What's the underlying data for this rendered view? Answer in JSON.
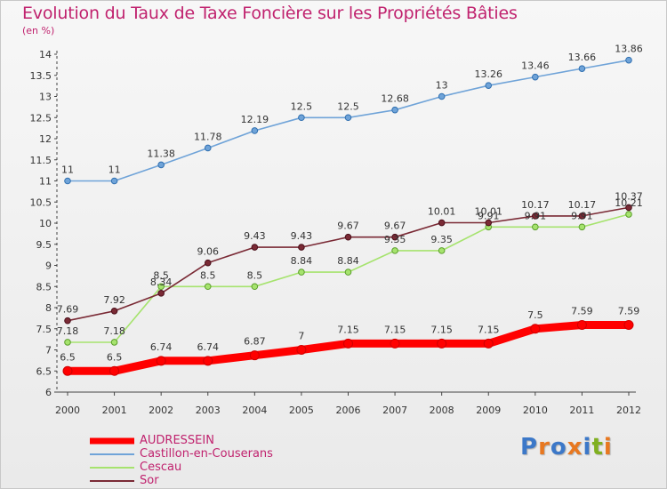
{
  "header": {
    "title": "Evolution du Taux de Taxe Foncière sur les Propriétés Bâties",
    "unit": "(en %)"
  },
  "logo": {
    "text": "Proxiti",
    "colors": [
      "#3c78c8",
      "#e87820",
      "#3c78c8",
      "#e87820",
      "#3c78c8",
      "#80b020",
      "#e87820"
    ]
  },
  "chart_data": {
    "type": "line",
    "title": "Evolution du Taux de Taxe Foncière sur les Propriétés Bâties",
    "ylabel": "(en %)",
    "xlabel": "",
    "ylim": [
      6,
      14
    ],
    "y_ticks": [
      "6",
      "6.5",
      "7",
      "7.5",
      "8",
      "8.5",
      "9",
      "9.5",
      "10",
      "10.5",
      "11",
      "11.5",
      "12",
      "12.5",
      "13",
      "13.5",
      "14"
    ],
    "grid": false,
    "legend_position": "bottom-left",
    "x": [
      "2000",
      "2001",
      "2002",
      "2003",
      "2004",
      "2005",
      "2006",
      "2007",
      "2008",
      "2009",
      "2010",
      "2011",
      "2012"
    ],
    "series": [
      {
        "name": "AUDRESSEIN",
        "color": "#ff0000",
        "values": [
          6.5,
          6.5,
          6.74,
          6.74,
          6.87,
          7,
          7.15,
          7.15,
          7.15,
          7.15,
          7.5,
          7.59,
          7.59
        ],
        "labels": [
          "6.5",
          "6.5",
          "6.74",
          "6.74",
          "6.87",
          "7",
          "7.15",
          "7.15",
          "7.15",
          "7.15",
          "7.5",
          "7.59",
          "7.59"
        ]
      },
      {
        "name": "Castillon-en-Couserans",
        "color": "#6fa3d8",
        "values": [
          11,
          11,
          11.38,
          11.78,
          12.19,
          12.5,
          12.5,
          12.68,
          13,
          13.26,
          13.46,
          13.66,
          13.86
        ],
        "labels": [
          "11",
          "11",
          "11.38",
          "11.78",
          "12.19",
          "12.5",
          "12.5",
          "12.68",
          "13",
          "13.26",
          "13.46",
          "13.66",
          "13.86"
        ]
      },
      {
        "name": "Cescau",
        "color": "#a6e36e",
        "values": [
          7.18,
          7.18,
          8.5,
          8.5,
          8.5,
          8.84,
          8.84,
          9.35,
          9.35,
          9.91,
          9.91,
          9.91,
          10.21
        ],
        "labels": [
          "7.18",
          "7.18",
          "8.5",
          "8.5",
          "8.5",
          "8.84",
          "8.84",
          "9.35",
          "9.35",
          "9.91",
          "9.91",
          "9.91",
          "10.21"
        ]
      },
      {
        "name": "Sor",
        "color": "#7a2a35",
        "values": [
          7.69,
          7.92,
          8.34,
          9.06,
          9.43,
          9.43,
          9.67,
          9.67,
          10.01,
          10.01,
          10.17,
          10.17,
          10.37
        ],
        "labels": [
          "7.69",
          "7.92",
          "8.34",
          "9.06",
          "9.43",
          "9.43",
          "9.67",
          "9.67",
          "10.01",
          "10.01",
          "10.17",
          "10.17",
          "10.37"
        ]
      }
    ]
  }
}
